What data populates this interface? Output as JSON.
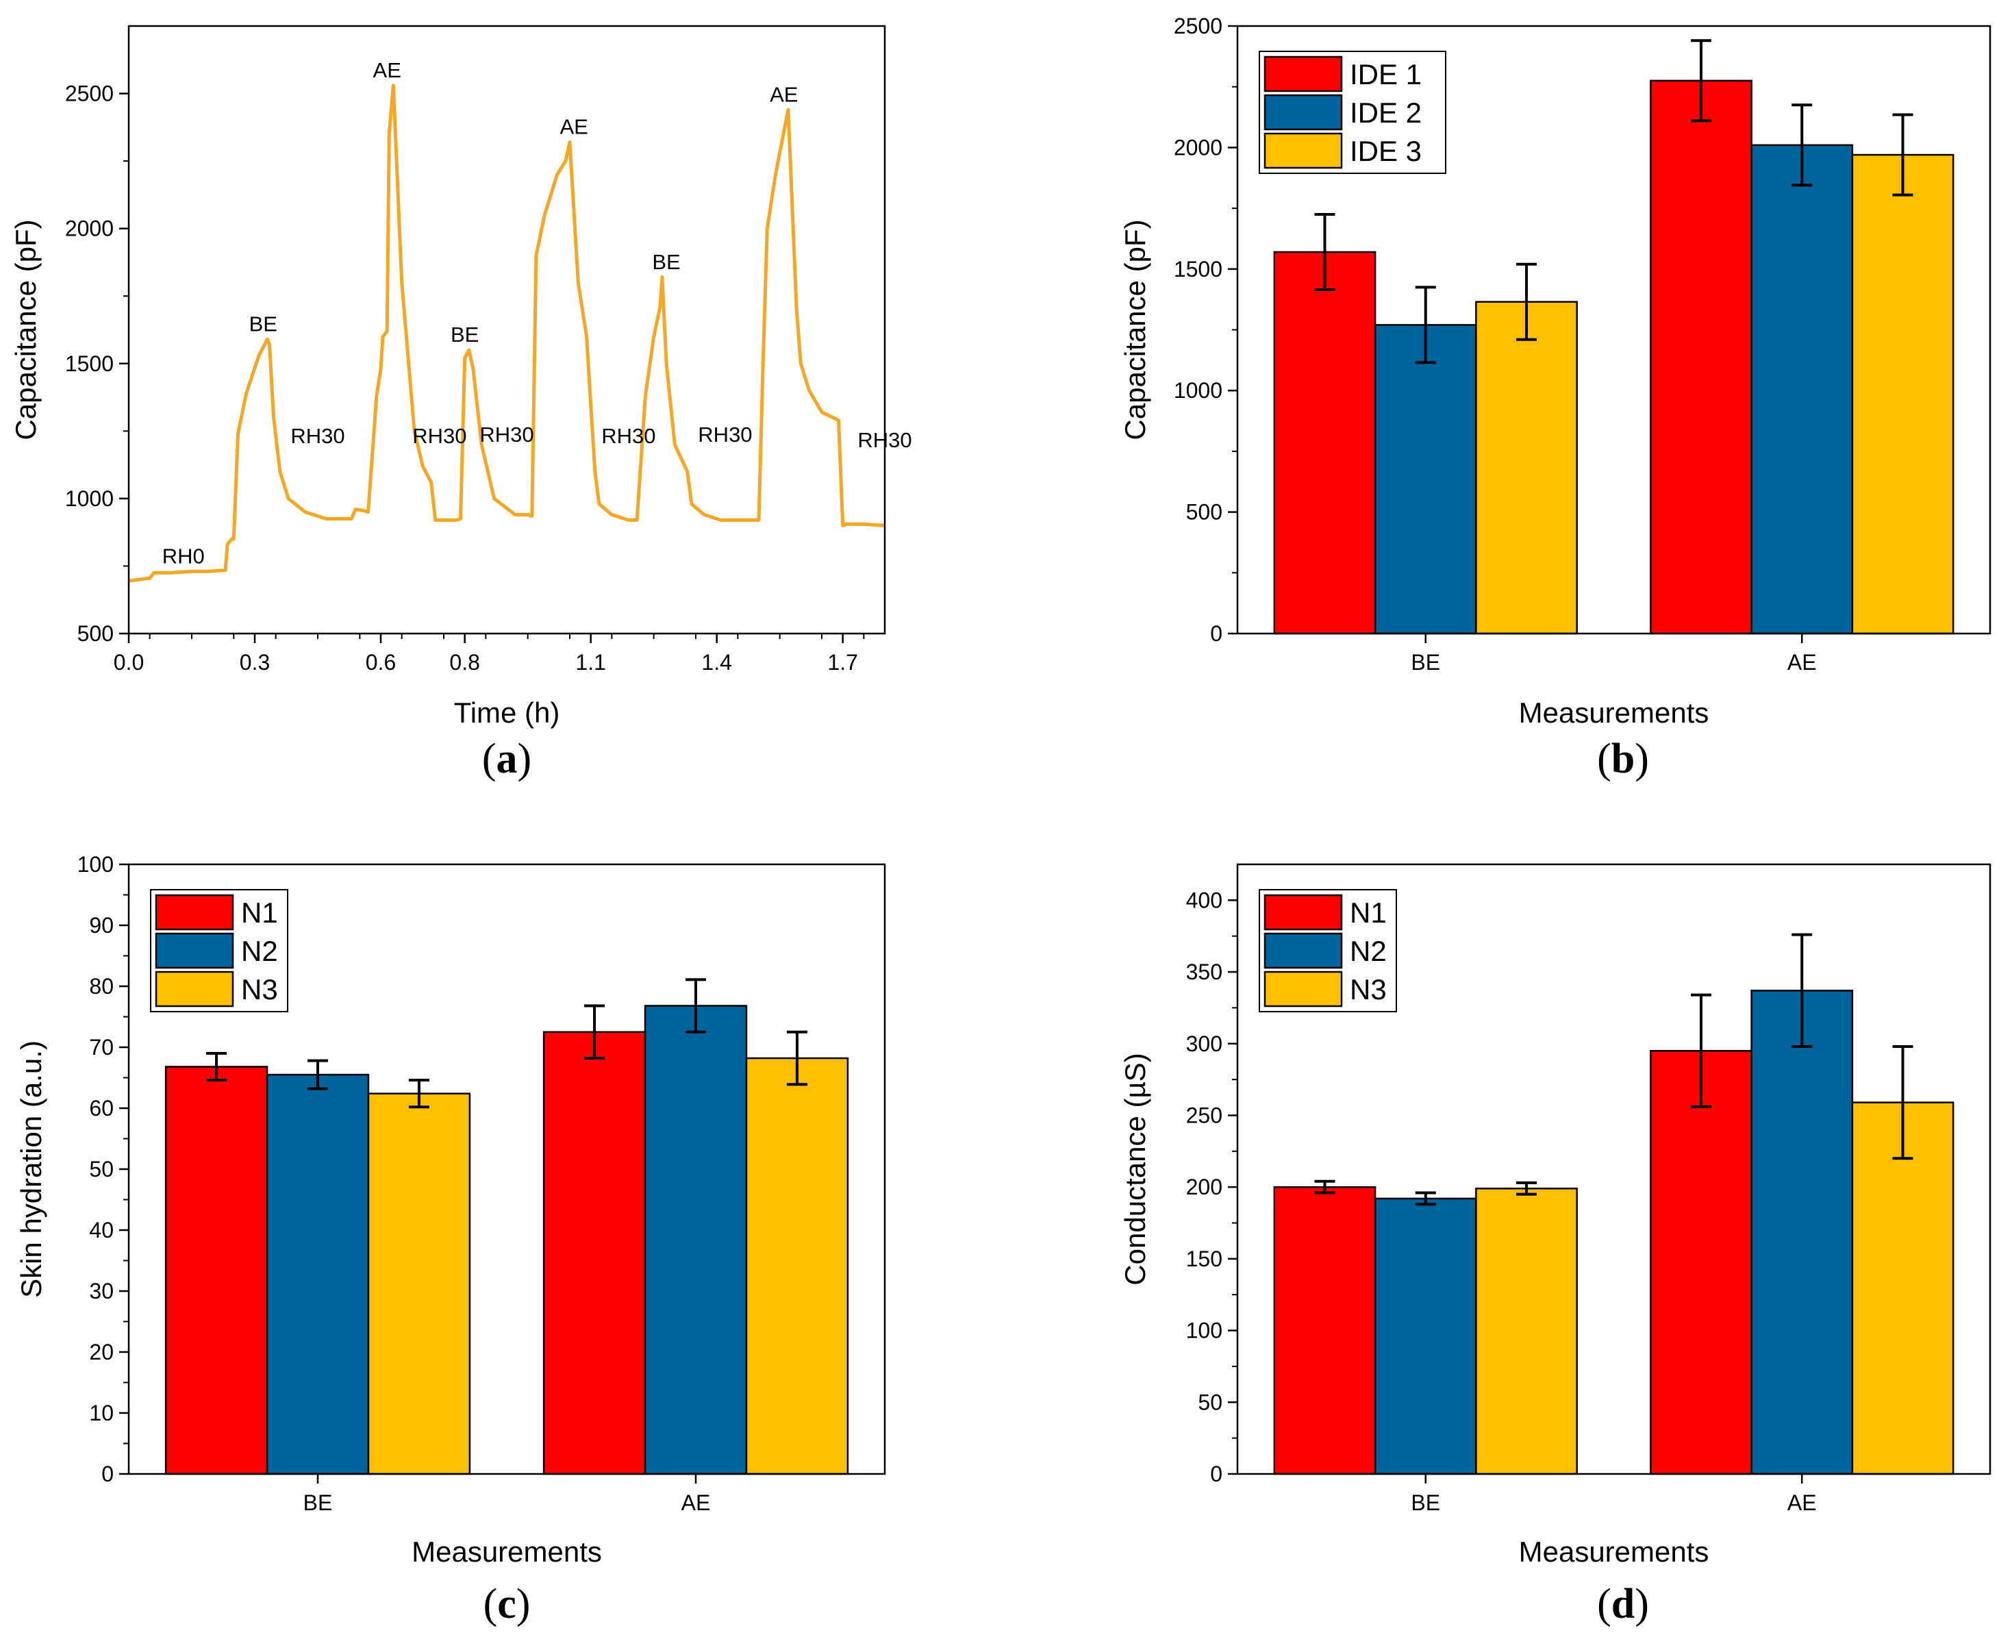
{
  "colors": {
    "red": "#ff0000",
    "blue": "#00649c",
    "yellow": "#ffc000",
    "line": "#f5a623"
  },
  "chart_data": [
    {
      "id": "a",
      "panel_label": "a",
      "type": "line",
      "xlabel": "Time (h)",
      "ylabel": "Capacitance (pF)",
      "xlim": [
        0,
        1.8
      ],
      "ylim": [
        500,
        2750
      ],
      "xticks": [
        0.0,
        0.3,
        0.6,
        0.8,
        1.1,
        1.4,
        1.7
      ],
      "xtick_labels": [
        "0.0",
        "0.3",
        "0.6",
        "0.8",
        "1.1",
        "1.4",
        "1.7"
      ],
      "yticks": [
        500,
        1000,
        1500,
        2000,
        2500
      ],
      "series": [
        {
          "name": "Capacitance",
          "x": [
            0.0,
            0.05,
            0.06,
            0.1,
            0.15,
            0.19,
            0.23,
            0.235,
            0.245,
            0.25,
            0.26,
            0.28,
            0.31,
            0.33,
            0.335,
            0.345,
            0.36,
            0.38,
            0.42,
            0.47,
            0.52,
            0.53,
            0.54,
            0.56,
            0.57,
            0.59,
            0.6,
            0.605,
            0.615,
            0.62,
            0.63,
            0.65,
            0.68,
            0.7,
            0.72,
            0.73,
            0.76,
            0.78,
            0.79,
            0.8,
            0.81,
            0.82,
            0.84,
            0.87,
            0.92,
            0.95,
            0.96,
            0.97,
            0.99,
            1.02,
            1.04,
            1.05,
            1.07,
            1.09,
            1.11,
            1.12,
            1.15,
            1.19,
            1.2,
            1.21,
            1.23,
            1.25,
            1.265,
            1.27,
            1.28,
            1.3,
            1.33,
            1.34,
            1.37,
            1.41,
            1.45,
            1.5,
            1.51,
            1.52,
            1.54,
            1.57,
            1.59,
            1.6,
            1.62,
            1.65,
            1.69,
            1.7,
            1.71,
            1.75,
            1.8
          ],
          "y": [
            695,
            705,
            725,
            725,
            730,
            730,
            735,
            830,
            850,
            850,
            1240,
            1390,
            1530,
            1590,
            1570,
            1300,
            1100,
            1000,
            950,
            925,
            925,
            925,
            960,
            955,
            950,
            1380,
            1480,
            1600,
            1620,
            2350,
            2530,
            1800,
            1250,
            1120,
            1060,
            920,
            920,
            920,
            925,
            1520,
            1550,
            1480,
            1200,
            1000,
            940,
            940,
            935,
            1900,
            2050,
            2200,
            2250,
            2320,
            1800,
            1600,
            1100,
            980,
            940,
            920,
            920,
            920,
            1380,
            1600,
            1710,
            1820,
            1500,
            1200,
            1100,
            980,
            940,
            920,
            920,
            920,
            1490,
            2000,
            2200,
            2440,
            1700,
            1500,
            1400,
            1320,
            1290,
            900,
            905,
            905,
            900
          ]
        }
      ],
      "annotations": [
        {
          "text": "RH0",
          "x": 0.13,
          "y": 760
        },
        {
          "text": "BE",
          "x": 0.32,
          "y": 1620
        },
        {
          "text": "RH30",
          "x": 0.45,
          "y": 1205
        },
        {
          "text": "AE",
          "x": 0.615,
          "y": 2560
        },
        {
          "text": "RH30",
          "x": 0.74,
          "y": 1205
        },
        {
          "text": "BE",
          "x": 0.8,
          "y": 1580
        },
        {
          "text": "RH30",
          "x": 0.9,
          "y": 1210
        },
        {
          "text": "AE",
          "x": 1.06,
          "y": 2350
        },
        {
          "text": "RH30",
          "x": 1.19,
          "y": 1205
        },
        {
          "text": "BE",
          "x": 1.28,
          "y": 1850
        },
        {
          "text": "RH30",
          "x": 1.42,
          "y": 1210
        },
        {
          "text": "AE",
          "x": 1.56,
          "y": 2470
        },
        {
          "text": "RH30",
          "x": 1.8,
          "y": 1190
        }
      ]
    },
    {
      "id": "b",
      "panel_label": "b",
      "type": "bar",
      "xlabel": "Measurements",
      "ylabel": "Capacitance (pF)",
      "categories": [
        "BE",
        "AE"
      ],
      "ylim": [
        0,
        2500
      ],
      "yticks": [
        0,
        500,
        1000,
        1500,
        2000,
        2500
      ],
      "series": [
        {
          "name": "IDE 1",
          "values": [
            1570,
            2275
          ],
          "errors": [
            155,
            165
          ]
        },
        {
          "name": "IDE 2",
          "values": [
            1270,
            2010
          ],
          "errors": [
            155,
            165
          ]
        },
        {
          "name": "IDE 3",
          "values": [
            1365,
            1970
          ],
          "errors": [
            155,
            165
          ]
        }
      ],
      "legend": "top-left"
    },
    {
      "id": "c",
      "panel_label": "c",
      "type": "bar",
      "xlabel": "Measurements",
      "ylabel": "Skin hydration (a.u.)",
      "categories": [
        "BE",
        "AE"
      ],
      "ylim": [
        0,
        100
      ],
      "yticks": [
        0,
        10,
        20,
        30,
        40,
        50,
        60,
        70,
        80,
        90,
        100
      ],
      "series": [
        {
          "name": "N1",
          "values": [
            66.8,
            72.5
          ],
          "errors": [
            2.2,
            4.3
          ]
        },
        {
          "name": "N2",
          "values": [
            65.5,
            76.8
          ],
          "errors": [
            2.3,
            4.3
          ]
        },
        {
          "name": "N3",
          "values": [
            62.4,
            68.2
          ],
          "errors": [
            2.2,
            4.3
          ]
        }
      ],
      "legend": "top-left"
    },
    {
      "id": "d",
      "panel_label": "d",
      "type": "bar",
      "xlabel": "Measurements",
      "ylabel": "Conductance (µS)",
      "categories": [
        "BE",
        "AE"
      ],
      "ylim": [
        0,
        425
      ],
      "yticks": [
        0,
        50,
        100,
        150,
        200,
        250,
        300,
        350,
        400
      ],
      "series": [
        {
          "name": "N1",
          "values": [
            200,
            295
          ],
          "errors": [
            4,
            39
          ]
        },
        {
          "name": "N2",
          "values": [
            192,
            337
          ],
          "errors": [
            4,
            39
          ]
        },
        {
          "name": "N3",
          "values": [
            199,
            259
          ],
          "errors": [
            4,
            39
          ]
        }
      ],
      "legend": "top-left"
    }
  ]
}
